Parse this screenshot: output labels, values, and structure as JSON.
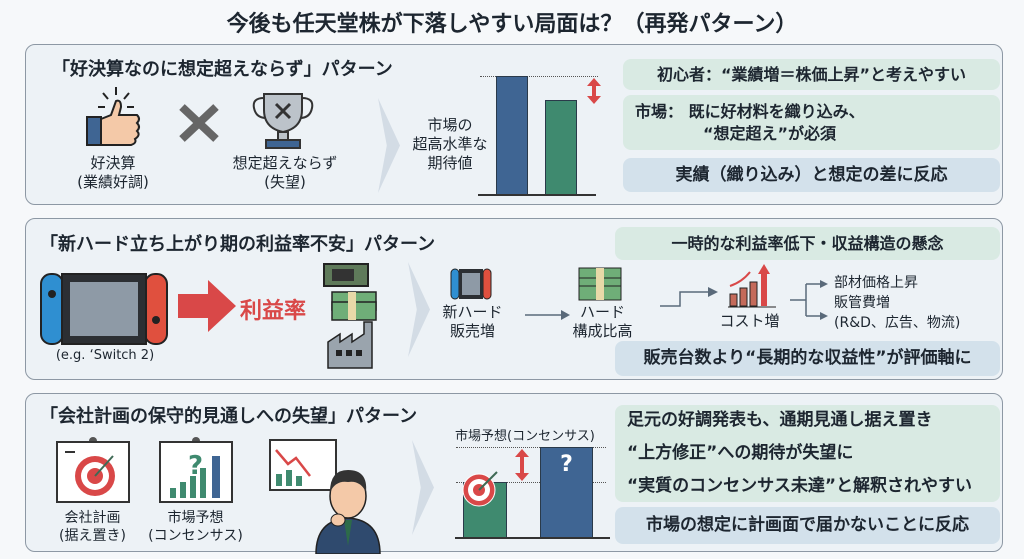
{
  "title": "今後も任天堂株が下落しやすい局面は？（再発パターン）",
  "colors": {
    "blue_bar": "#3f6593",
    "green_bar": "#3f8a6f",
    "accent_red": "#d94848",
    "note_green": "#d9eae3",
    "note_blue": "#d3e1eb"
  },
  "pattern1": {
    "heading": "「好決算なのに想定超えならず」パターン",
    "good_results": {
      "label": "好決算",
      "sub": "(業績好調)",
      "icon": "thumbs-up-icon"
    },
    "times_icon": "x-mark-icon",
    "no_beat": {
      "label": "想定超えならず",
      "sub": "(失望)",
      "icon": "trophy-x-icon"
    },
    "chart_label": [
      "市場の",
      "超高水準な",
      "期待値"
    ],
    "notes": [
      "初心者：“業績増＝株価上昇”と考えやすい",
      "市場： 既に好材料を織り込み、",
      "“想定超え”が必須"
    ],
    "conclusion": "実績（織り込み）と想定の差に反応"
  },
  "pattern2": {
    "heading": "「新ハード立ち上がり期の利益率不安」パターン",
    "switch_label": "(e.g. ‘Switch 2)",
    "margin_label": "利益率",
    "top_note": "一時的な利益率低下・収益構造の懸念",
    "flow": [
      "新ハード",
      "販売増",
      "ハード",
      "構成比高",
      "コスト増"
    ],
    "costs": [
      "部材価格上昇",
      "販管費増",
      "(R&D、広告、物流)"
    ],
    "conclusion": "販売台数より“長期的な収益性”が評価軸に"
  },
  "pattern3": {
    "heading": "「会社計画の保守的見通しへの失望」パターン",
    "plan_label": [
      "会社計画",
      "(据え置き)"
    ],
    "consensus_label": [
      "市場予想",
      "(コンセンサス)"
    ],
    "chart_label": "市場予想(コンセンサス)",
    "question_mark": "?",
    "notes": [
      "足元の好調発表も、通期見通し据え置き",
      "“上方修正”への期待が失望に",
      "“実質のコンセンサス未達”と解釈されやすい"
    ],
    "conclusion": "市場の想定に計画面で届かないことに反応"
  }
}
